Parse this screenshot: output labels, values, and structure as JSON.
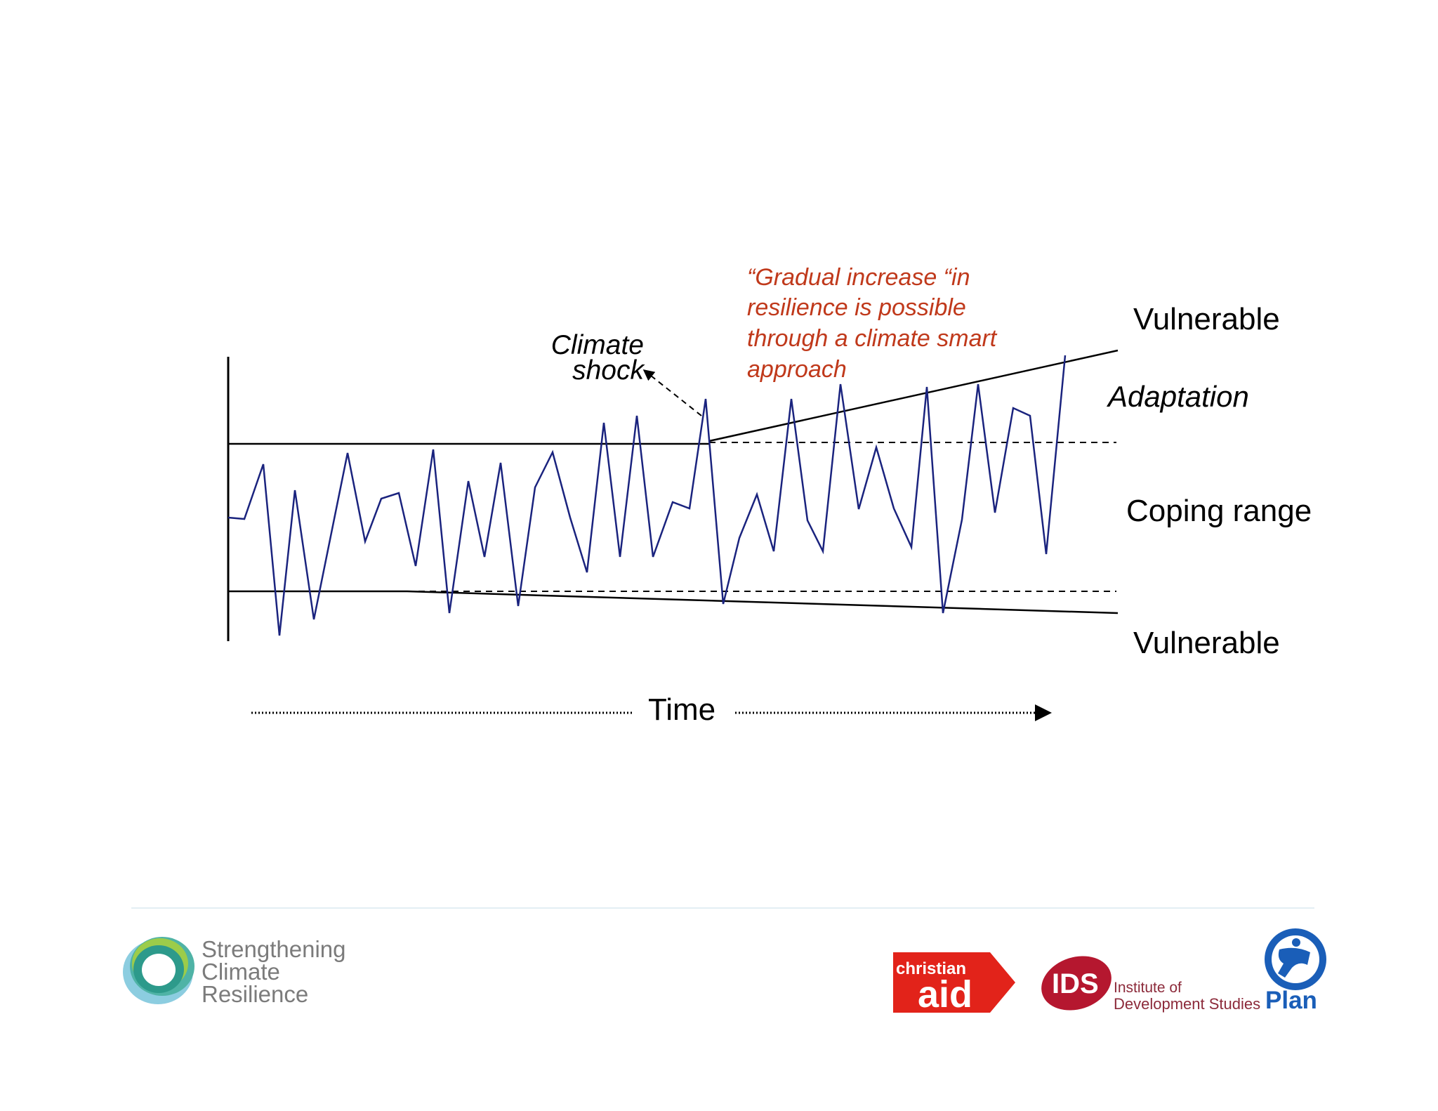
{
  "diagram": {
    "labels": {
      "vulnerable_top": "Vulnerable",
      "adaptation": "Adaptation",
      "coping_range": "Coping range",
      "vulnerable_bottom": "Vulnerable",
      "climate_shock_line1": "Climate",
      "climate_shock_line2": "shock",
      "quote_line1": "“Gradual increase “in",
      "quote_line2": "resilience is possible",
      "quote_line3": "through a climate smart",
      "quote_line4": "approach",
      "time": "Time"
    },
    "colors": {
      "signal": "#1a237e",
      "quote": "#c0391b",
      "lines": "#000000"
    }
  },
  "footer": {
    "scr_logo": {
      "line1": "Strengthening",
      "line2": "Climate",
      "line3": "Resilience"
    },
    "christian_aid_logo": {
      "line1": "christian",
      "line2": "aid"
    },
    "ids_logo": {
      "mark": "IDS",
      "line1": "Institute of",
      "line2": "Development Studies"
    },
    "plan_logo": {
      "name": "Plan"
    }
  }
}
